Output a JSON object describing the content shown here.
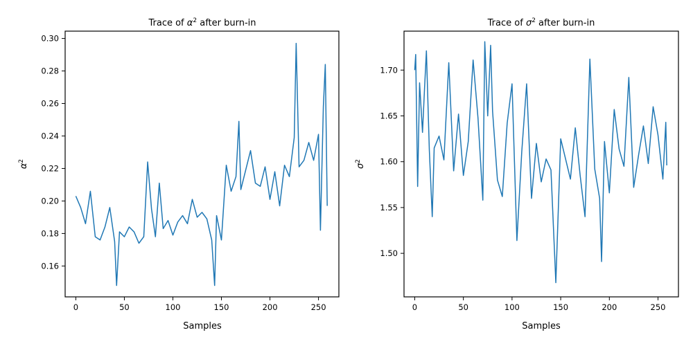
{
  "chart_data": [
    {
      "type": "line",
      "title_prefix": "Trace of ",
      "title_symbol": "α",
      "title_sup": "2",
      "title_suffix": " after burn-in",
      "xlabel": "Samples",
      "ylabel_symbol": "α",
      "ylabel_sup": "2",
      "xlim": [
        -11,
        271
      ],
      "ylim": [
        0.141,
        0.3045
      ],
      "xticks": [
        0,
        50,
        100,
        150,
        200,
        250
      ],
      "yticks": [
        0.16,
        0.18,
        0.2,
        0.22,
        0.24,
        0.26,
        0.28,
        0.3
      ],
      "ytick_labels": [
        "0.16",
        "0.18",
        "0.20",
        "0.22",
        "0.24",
        "0.26",
        "0.28",
        "0.30"
      ],
      "xtick_labels": [
        "0",
        "50",
        "100",
        "150",
        "200",
        "250"
      ],
      "color": "#1f77b4",
      "grid": false,
      "series": [
        {
          "x": [
            0,
            5,
            10,
            15,
            20,
            25,
            30,
            35,
            40,
            42,
            45,
            50,
            55,
            60,
            65,
            70,
            74,
            78,
            82,
            86,
            90,
            95,
            100,
            105,
            110,
            115,
            120,
            125,
            130,
            135,
            140,
            143,
            145,
            150,
            155,
            160,
            165,
            168,
            170,
            175,
            180,
            185,
            190,
            195,
            200,
            205,
            210,
            215,
            220,
            225,
            227,
            230,
            235,
            240,
            245,
            250,
            252,
            255,
            257,
            259
          ],
          "y": [
            0.203,
            0.196,
            0.186,
            0.206,
            0.178,
            0.176,
            0.184,
            0.196,
            0.175,
            0.148,
            0.181,
            0.178,
            0.184,
            0.181,
            0.174,
            0.178,
            0.224,
            0.195,
            0.178,
            0.211,
            0.183,
            0.188,
            0.179,
            0.187,
            0.191,
            0.186,
            0.201,
            0.19,
            0.193,
            0.189,
            0.176,
            0.148,
            0.191,
            0.176,
            0.222,
            0.206,
            0.215,
            0.249,
            0.207,
            0.219,
            0.231,
            0.211,
            0.209,
            0.221,
            0.201,
            0.218,
            0.197,
            0.222,
            0.215,
            0.239,
            0.297,
            0.221,
            0.225,
            0.236,
            0.225,
            0.241,
            0.182,
            0.258,
            0.284,
            0.197
          ]
        }
      ]
    },
    {
      "type": "line",
      "title_prefix": "Trace of ",
      "title_symbol": "σ",
      "title_sup": "2",
      "title_suffix": " after burn-in",
      "xlabel": "Samples",
      "ylabel_symbol": "σ",
      "ylabel_sup": "2",
      "xlim": [
        -11,
        271
      ],
      "ylim": [
        1.4525,
        1.7425
      ],
      "xticks": [
        0,
        50,
        100,
        150,
        200,
        250
      ],
      "yticks": [
        1.5,
        1.55,
        1.6,
        1.65,
        1.7
      ],
      "ytick_labels": [
        "1.50",
        "1.55",
        "1.60",
        "1.65",
        "1.70"
      ],
      "xtick_labels": [
        "0",
        "50",
        "100",
        "150",
        "200",
        "250"
      ],
      "color": "#1f77b4",
      "grid": false,
      "series": [
        {
          "x": [
            0,
            1,
            3,
            5,
            8,
            10,
            12,
            15,
            18,
            20,
            25,
            30,
            35,
            40,
            45,
            50,
            55,
            60,
            65,
            70,
            72,
            75,
            78,
            80,
            85,
            90,
            95,
            100,
            105,
            110,
            115,
            120,
            125,
            130,
            135,
            140,
            145,
            150,
            155,
            160,
            165,
            170,
            175,
            180,
            185,
            190,
            192,
            195,
            200,
            205,
            210,
            215,
            220,
            225,
            230,
            235,
            240,
            245,
            250,
            255,
            258,
            259
          ],
          "y": [
            1.7,
            1.717,
            1.573,
            1.686,
            1.632,
            1.678,
            1.721,
            1.613,
            1.54,
            1.615,
            1.628,
            1.602,
            1.708,
            1.59,
            1.652,
            1.585,
            1.622,
            1.711,
            1.648,
            1.558,
            1.731,
            1.65,
            1.727,
            1.655,
            1.58,
            1.562,
            1.642,
            1.685,
            1.514,
            1.611,
            1.685,
            1.56,
            1.62,
            1.578,
            1.603,
            1.591,
            1.468,
            1.625,
            1.603,
            1.581,
            1.637,
            1.585,
            1.54,
            1.712,
            1.592,
            1.56,
            1.491,
            1.622,
            1.566,
            1.657,
            1.614,
            1.595,
            1.692,
            1.572,
            1.607,
            1.639,
            1.598,
            1.66,
            1.629,
            1.581,
            1.643,
            1.596
          ]
        }
      ]
    }
  ]
}
